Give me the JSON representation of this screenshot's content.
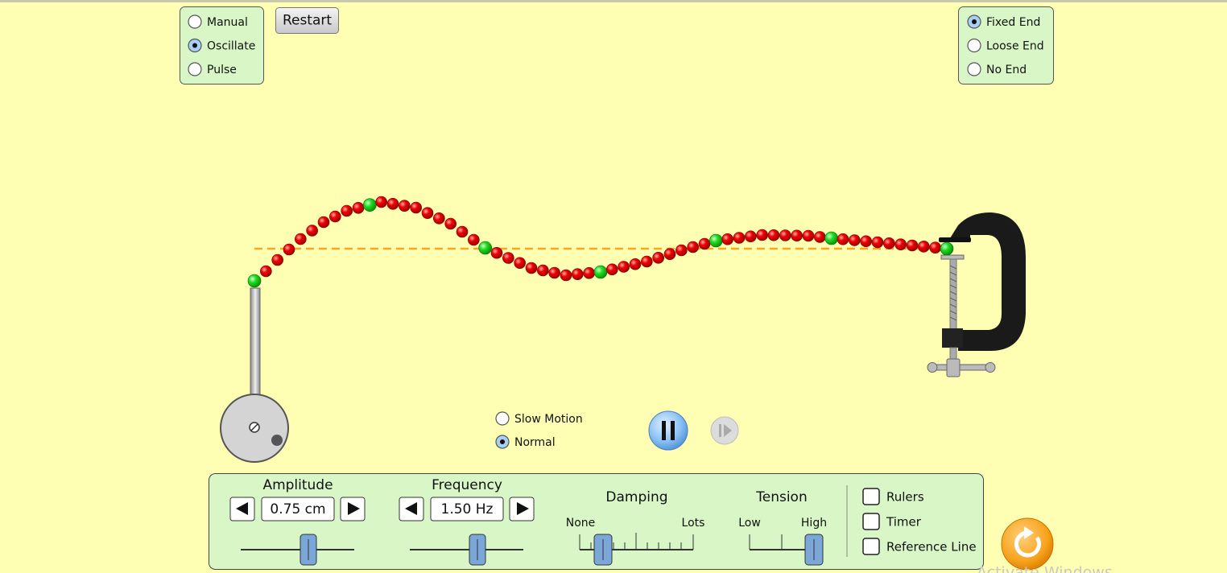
{
  "mode": {
    "options": [
      "Manual",
      "Oscillate",
      "Pulse"
    ],
    "selected": 1
  },
  "restart": "Restart",
  "end": {
    "options": [
      "Fixed End",
      "Loose End",
      "No End"
    ],
    "selected": 0
  },
  "speed": {
    "options": [
      "Slow Motion",
      "Normal"
    ],
    "selected": 1
  },
  "controls": {
    "amplitude": {
      "label": "Amplitude",
      "value": "0.75 cm"
    },
    "frequency": {
      "label": "Frequency",
      "value": "1.50 Hz"
    },
    "damping": {
      "label": "Damping",
      "min": "None",
      "max": "Lots"
    },
    "tension": {
      "label": "Tension",
      "min": "Low",
      "max": "High"
    }
  },
  "checkboxes": [
    "Rulers",
    "Timer",
    "Reference Line"
  ],
  "watermark": "Activate Windows"
}
